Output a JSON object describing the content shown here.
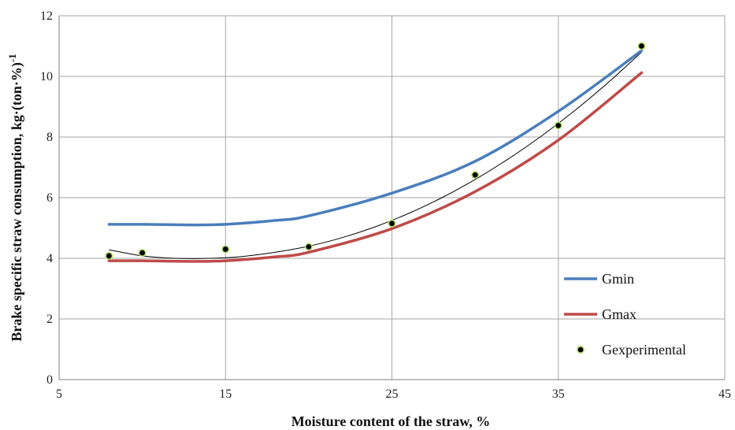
{
  "chart_data": {
    "type": "line",
    "title": "",
    "xlabel": "Moisture content of the straw, %",
    "ylabel_main": "Brake specific straw consumption, kg·(ton·%)",
    "ylabel_sup": "-1",
    "xlim": [
      5,
      45
    ],
    "ylim": [
      0,
      12
    ],
    "xticks": [
      "5",
      "15",
      "25",
      "35",
      "45"
    ],
    "yticks": [
      "0",
      "2",
      "4",
      "6",
      "8",
      "10",
      "12"
    ],
    "grid": true,
    "legend_position": "bottom-right",
    "series": [
      {
        "name": "Gmin",
        "color": "#4a7ebb",
        "style": "line",
        "x": [
          8,
          10,
          13,
          15,
          18,
          20,
          25,
          30,
          35,
          40
        ],
        "y": [
          5.12,
          5.12,
          5.1,
          5.12,
          5.25,
          5.4,
          6.15,
          7.2,
          8.85,
          10.85
        ]
      },
      {
        "name": "Gmax",
        "color": "#be4b48",
        "style": "line",
        "x": [
          8,
          10,
          13,
          15,
          18,
          20,
          25,
          30,
          35,
          40
        ],
        "y": [
          3.92,
          3.92,
          3.9,
          3.92,
          4.05,
          4.2,
          4.98,
          6.2,
          7.9,
          10.12
        ]
      },
      {
        "name": "Gexperimental",
        "color": "#000000",
        "style": "points",
        "x": [
          8,
          10,
          15,
          20,
          25,
          30,
          35,
          40
        ],
        "y": [
          4.08,
          4.18,
          4.3,
          4.38,
          5.15,
          6.75,
          8.38,
          11.0
        ]
      }
    ],
    "trendline": {
      "color": "#000000",
      "x": [
        8,
        10,
        12,
        14,
        16,
        18,
        20,
        22,
        24,
        26,
        28,
        30,
        32,
        34,
        36,
        38,
        40
      ],
      "y": [
        4.28,
        4.08,
        4.0,
        4.0,
        4.06,
        4.2,
        4.4,
        4.68,
        5.04,
        5.48,
        6.0,
        6.6,
        7.28,
        8.04,
        8.88,
        9.8,
        10.8
      ]
    }
  }
}
